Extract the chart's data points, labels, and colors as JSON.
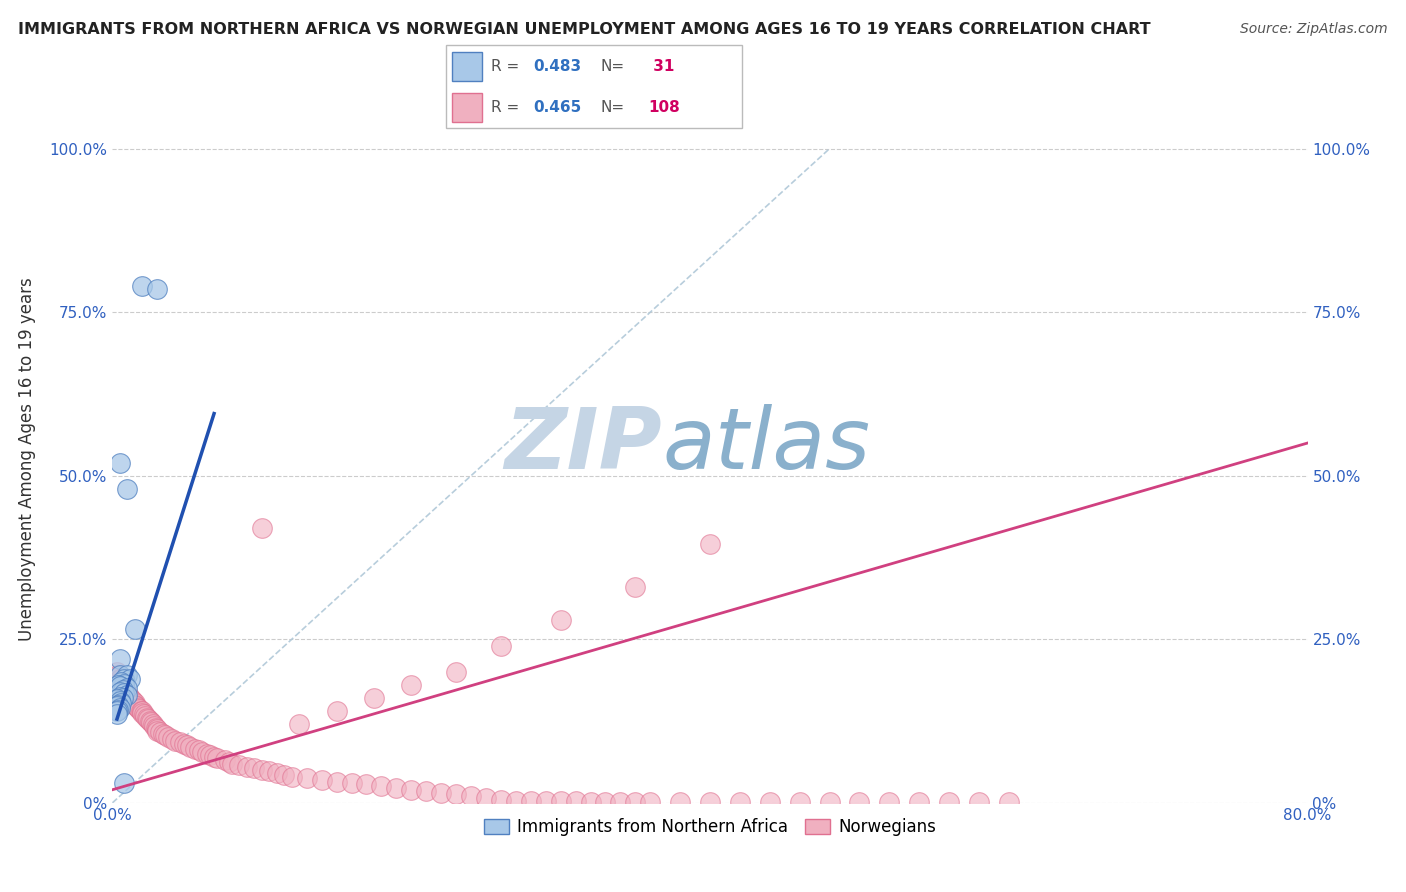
{
  "title": "IMMIGRANTS FROM NORTHERN AFRICA VS NORWEGIAN UNEMPLOYMENT AMONG AGES 16 TO 19 YEARS CORRELATION CHART",
  "source": "Source: ZipAtlas.com",
  "ylabel": "Unemployment Among Ages 16 to 19 years",
  "ytick_labels": [
    "0%",
    "25.0%",
    "50.0%",
    "75.0%",
    "100.0%"
  ],
  "ytick_values": [
    0.0,
    0.25,
    0.5,
    0.75,
    1.0
  ],
  "xlim": [
    0.0,
    0.8
  ],
  "ylim": [
    0.0,
    1.05
  ],
  "blue_R": 0.483,
  "blue_N": 31,
  "pink_R": 0.465,
  "pink_N": 108,
  "blue_scatter_x": [
    0.02,
    0.03,
    0.005,
    0.01,
    0.015,
    0.005,
    0.005,
    0.01,
    0.008,
    0.012,
    0.006,
    0.008,
    0.004,
    0.005,
    0.01,
    0.007,
    0.005,
    0.008,
    0.01,
    0.005,
    0.007,
    0.003,
    0.005,
    0.006,
    0.004,
    0.003,
    0.005,
    0.004,
    0.003,
    0.003,
    0.008
  ],
  "blue_scatter_y": [
    0.79,
    0.785,
    0.52,
    0.48,
    0.265,
    0.22,
    0.195,
    0.195,
    0.19,
    0.19,
    0.185,
    0.182,
    0.18,
    0.178,
    0.175,
    0.172,
    0.17,
    0.168,
    0.165,
    0.162,
    0.16,
    0.158,
    0.155,
    0.152,
    0.15,
    0.148,
    0.145,
    0.142,
    0.14,
    0.135,
    0.03
  ],
  "pink_scatter_x": [
    0.003,
    0.004,
    0.005,
    0.005,
    0.006,
    0.007,
    0.008,
    0.008,
    0.009,
    0.01,
    0.01,
    0.011,
    0.012,
    0.013,
    0.014,
    0.015,
    0.015,
    0.016,
    0.017,
    0.018,
    0.019,
    0.02,
    0.02,
    0.021,
    0.022,
    0.023,
    0.024,
    0.025,
    0.026,
    0.027,
    0.028,
    0.029,
    0.03,
    0.03,
    0.032,
    0.034,
    0.035,
    0.037,
    0.04,
    0.042,
    0.045,
    0.048,
    0.05,
    0.052,
    0.055,
    0.058,
    0.06,
    0.063,
    0.065,
    0.068,
    0.07,
    0.075,
    0.078,
    0.08,
    0.085,
    0.09,
    0.095,
    0.1,
    0.105,
    0.11,
    0.115,
    0.12,
    0.13,
    0.14,
    0.15,
    0.16,
    0.17,
    0.18,
    0.19,
    0.2,
    0.21,
    0.22,
    0.23,
    0.24,
    0.25,
    0.26,
    0.27,
    0.28,
    0.29,
    0.3,
    0.31,
    0.32,
    0.33,
    0.34,
    0.35,
    0.36,
    0.38,
    0.4,
    0.42,
    0.44,
    0.46,
    0.48,
    0.5,
    0.52,
    0.54,
    0.56,
    0.58,
    0.6,
    0.4,
    0.35,
    0.3,
    0.26,
    0.23,
    0.2,
    0.175,
    0.15,
    0.125,
    0.1
  ],
  "pink_scatter_y": [
    0.2,
    0.195,
    0.19,
    0.185,
    0.18,
    0.178,
    0.175,
    0.173,
    0.17,
    0.168,
    0.165,
    0.163,
    0.16,
    0.157,
    0.155,
    0.152,
    0.15,
    0.148,
    0.145,
    0.143,
    0.14,
    0.14,
    0.138,
    0.135,
    0.133,
    0.13,
    0.128,
    0.125,
    0.123,
    0.12,
    0.118,
    0.115,
    0.113,
    0.11,
    0.108,
    0.105,
    0.103,
    0.1,
    0.098,
    0.095,
    0.093,
    0.09,
    0.088,
    0.085,
    0.083,
    0.08,
    0.078,
    0.075,
    0.073,
    0.07,
    0.068,
    0.065,
    0.063,
    0.06,
    0.058,
    0.055,
    0.053,
    0.05,
    0.048,
    0.045,
    0.043,
    0.04,
    0.038,
    0.035,
    0.032,
    0.03,
    0.028,
    0.025,
    0.023,
    0.02,
    0.018,
    0.015,
    0.013,
    0.01,
    0.008,
    0.005,
    0.003,
    0.003,
    0.002,
    0.002,
    0.002,
    0.001,
    0.001,
    0.001,
    0.001,
    0.001,
    0.001,
    0.001,
    0.001,
    0.001,
    0.001,
    0.001,
    0.001,
    0.001,
    0.001,
    0.001,
    0.001,
    0.001,
    0.395,
    0.33,
    0.28,
    0.24,
    0.2,
    0.18,
    0.16,
    0.14,
    0.12,
    0.42
  ],
  "blue_line_x": [
    0.003,
    0.068
  ],
  "blue_line_y": [
    0.128,
    0.595
  ],
  "pink_line_x": [
    0.0,
    0.8
  ],
  "pink_line_y": [
    0.02,
    0.55
  ],
  "ref_line_x": [
    0.0,
    0.48
  ],
  "ref_line_y": [
    0.0,
    1.0
  ],
  "watermark_zip": "ZIP",
  "watermark_atlas": "atlas",
  "watermark_color_zip": "#c5d5e5",
  "watermark_color_atlas": "#8ab0cc",
  "blue_color": "#a8c8e8",
  "pink_color": "#f0b0c0",
  "blue_edge_color": "#5080c0",
  "pink_edge_color": "#e07090",
  "blue_line_color": "#2050b0",
  "pink_line_color": "#d04080",
  "ref_line_color": "#b0c8d8",
  "legend_labels": [
    "Immigrants from Northern Africa",
    "Norwegians"
  ],
  "legend_R_color": "#3070c0",
  "legend_N_color": "#d00060"
}
